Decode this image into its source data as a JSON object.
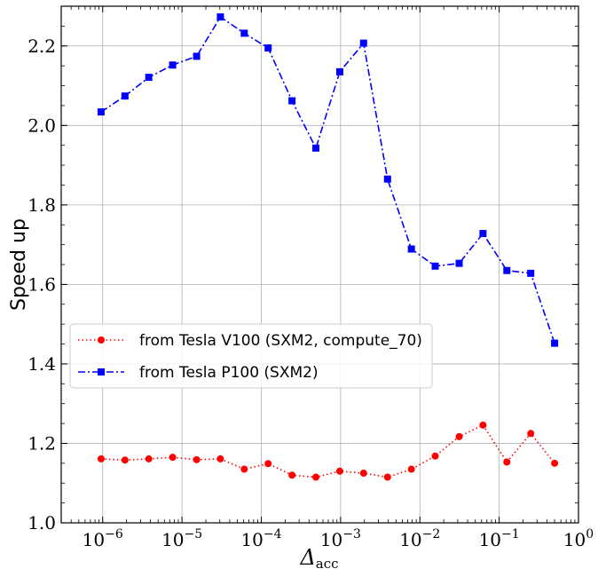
{
  "chart_data": {
    "type": "line",
    "xscale": "log",
    "xlabel": "Δ",
    "xlabel_sub": "acc",
    "ylabel": "Speed up",
    "xlim": [
      3e-07,
      1
    ],
    "ylim": [
      1.0,
      2.3
    ],
    "x_ticks": [
      {
        "value": 1e-06,
        "base": "10",
        "exp": "−6"
      },
      {
        "value": 1e-05,
        "base": "10",
        "exp": "−5"
      },
      {
        "value": 0.0001,
        "base": "10",
        "exp": "−4"
      },
      {
        "value": 0.001,
        "base": "10",
        "exp": "−3"
      },
      {
        "value": 0.01,
        "base": "10",
        "exp": "−2"
      },
      {
        "value": 0.1,
        "base": "10",
        "exp": "−1"
      },
      {
        "value": 1,
        "base": "10",
        "exp": "0"
      }
    ],
    "y_ticks": [
      {
        "value": 1.0,
        "label": "1.0"
      },
      {
        "value": 1.2,
        "label": "1.2"
      },
      {
        "value": 1.4,
        "label": "1.4"
      },
      {
        "value": 1.6,
        "label": "1.6"
      },
      {
        "value": 1.8,
        "label": "1.8"
      },
      {
        "value": 2.0,
        "label": "2.0"
      },
      {
        "value": 2.2,
        "label": "2.2"
      }
    ],
    "grid": true,
    "legend_position": "center-left",
    "x": [
      9.54e-07,
      1.91e-06,
      3.81e-06,
      7.63e-06,
      1.53e-05,
      3.05e-05,
      6.1e-05,
      0.000122,
      0.000244,
      0.000488,
      0.000977,
      0.00195,
      0.00391,
      0.00781,
      0.0156,
      0.0313,
      0.0625,
      0.125,
      0.25,
      0.5
    ],
    "series": [
      {
        "name": "from Tesla P100 (SXM2)",
        "color": "#0000ff",
        "marker": "square",
        "linestyle": "dashdot",
        "values": [
          2.034,
          2.074,
          2.121,
          2.152,
          2.174,
          2.273,
          2.232,
          2.195,
          2.062,
          1.943,
          2.135,
          2.207,
          1.865,
          1.689,
          1.646,
          1.653,
          1.728,
          1.635,
          1.628,
          1.452
        ]
      },
      {
        "name": "from Tesla V100 (SXM2, compute_70)",
        "color": "#ff0000",
        "marker": "circle",
        "linestyle": "dotted",
        "values": [
          1.161,
          1.158,
          1.161,
          1.165,
          1.159,
          1.161,
          1.135,
          1.149,
          1.12,
          1.115,
          1.13,
          1.125,
          1.115,
          1.135,
          1.168,
          1.217,
          1.246,
          1.153,
          1.225,
          1.15
        ]
      }
    ]
  }
}
